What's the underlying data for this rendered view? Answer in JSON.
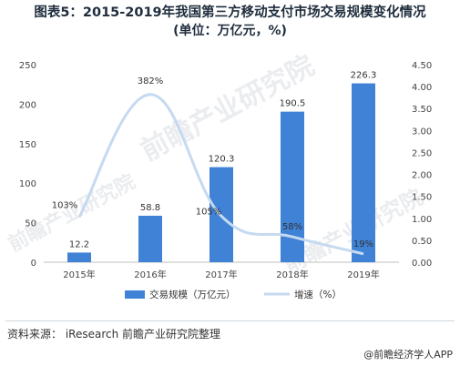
{
  "title_line1": "图表5：2015-2019年我国第三方移动支付市场交易规模变化情况",
  "title_line2": "(单位：万亿元，%)",
  "source": "资料来源：  iResearch 前瞻产业研究院整理",
  "credit": "@前瞻经济学人APP",
  "watermark": "前瞻产业研究院",
  "colors": {
    "bar": "#3f82d6",
    "line": "#c5daf0"
  },
  "chart_data": {
    "type": "bar",
    "categories": [
      "2015年",
      "2016年",
      "2017年",
      "2018年",
      "2019年"
    ],
    "series": [
      {
        "name": "交易规模（万亿元）",
        "type": "bar",
        "axis": "left",
        "values": [
          12.2,
          58.8,
          120.3,
          190.5,
          226.3
        ],
        "labels": [
          "12.2",
          "58.8",
          "120.3",
          "190.5",
          "226.3"
        ]
      },
      {
        "name": "增速（%）",
        "type": "line",
        "axis": "right",
        "smooth": true,
        "values": [
          1.03,
          3.82,
          1.05,
          0.58,
          0.19
        ],
        "labels": [
          "103%",
          "382%",
          "105%",
          "58%",
          "19%"
        ]
      }
    ],
    "y_left": {
      "ticks": [
        "0",
        "50",
        "100",
        "150",
        "200",
        "250"
      ],
      "range": [
        0,
        250
      ]
    },
    "y_right": {
      "ticks": [
        "0.00",
        "0.50",
        "1.00",
        "1.50",
        "2.00",
        "2.50",
        "3.00",
        "3.50",
        "4.00",
        "4.50"
      ],
      "range": [
        0,
        4.5
      ]
    },
    "legend_position": "bottom",
    "grid": false
  }
}
